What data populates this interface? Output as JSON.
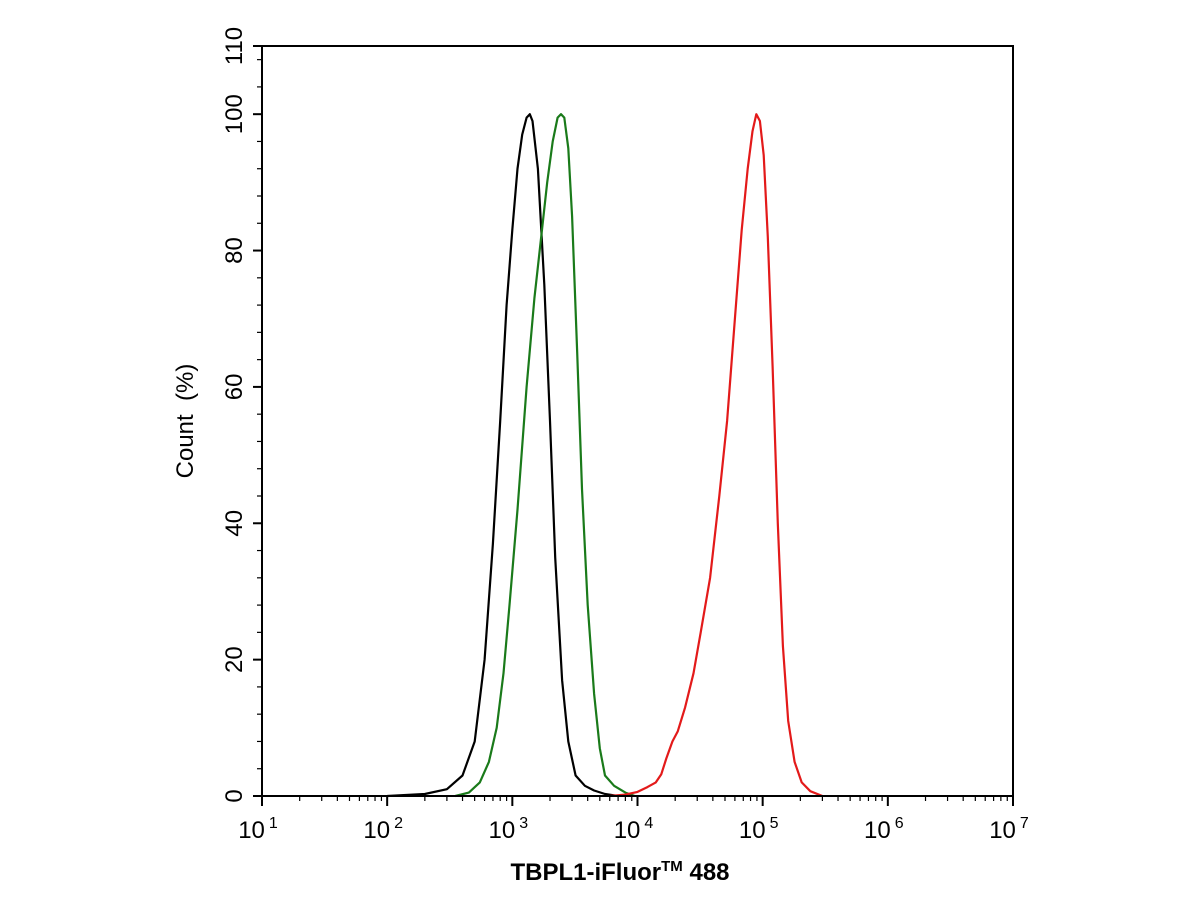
{
  "chart_data": {
    "type": "line",
    "title": "",
    "xlabel": "TBPL1-iFluor™ 488",
    "xlabel_parts": {
      "main": "TBPL1-iFluor",
      "sup": "TM",
      "tail": " 488"
    },
    "ylabel": "Count  (%)",
    "x_scale": "log",
    "xlim": [
      10,
      10000000
    ],
    "ylim": [
      0,
      110
    ],
    "x_ticks": [
      {
        "base": "10",
        "exp": "1",
        "value": 10
      },
      {
        "base": "10",
        "exp": "2",
        "value": 100
      },
      {
        "base": "10",
        "exp": "3",
        "value": 1000
      },
      {
        "base": "10",
        "exp": "4",
        "value": 10000
      },
      {
        "base": "10",
        "exp": "5",
        "value": 100000
      },
      {
        "base": "10",
        "exp": "6",
        "value": 1000000
      },
      {
        "base": "10",
        "exp": "7",
        "value": 10000000
      }
    ],
    "y_ticks": [
      "0",
      "20",
      "40",
      "60",
      "80",
      "100",
      "110"
    ],
    "y_tick_values": [
      0,
      20,
      40,
      60,
      80,
      100,
      110
    ],
    "grid": false,
    "legend": "none",
    "series": [
      {
        "color": "#000000",
        "points": [
          [
            100,
            0
          ],
          [
            200,
            0.3
          ],
          [
            300,
            1
          ],
          [
            400,
            3
          ],
          [
            500,
            8
          ],
          [
            600,
            20
          ],
          [
            700,
            37
          ],
          [
            800,
            55
          ],
          [
            900,
            72
          ],
          [
            1000,
            83
          ],
          [
            1100,
            92
          ],
          [
            1200,
            97
          ],
          [
            1300,
            99.5
          ],
          [
            1380,
            100
          ],
          [
            1450,
            99
          ],
          [
            1600,
            92
          ],
          [
            1800,
            75
          ],
          [
            2000,
            55
          ],
          [
            2200,
            35
          ],
          [
            2500,
            17
          ],
          [
            2800,
            8
          ],
          [
            3200,
            3
          ],
          [
            3800,
            1.5
          ],
          [
            4500,
            0.8
          ],
          [
            5500,
            0.3
          ],
          [
            7000,
            0
          ]
        ]
      },
      {
        "color": "#1a7a1a",
        "points": [
          [
            350,
            0
          ],
          [
            450,
            0.5
          ],
          [
            550,
            2
          ],
          [
            650,
            5
          ],
          [
            750,
            10
          ],
          [
            850,
            18
          ],
          [
            950,
            28
          ],
          [
            1100,
            42
          ],
          [
            1300,
            60
          ],
          [
            1500,
            73
          ],
          [
            1700,
            82
          ],
          [
            1900,
            90
          ],
          [
            2100,
            96
          ],
          [
            2300,
            99.5
          ],
          [
            2450,
            100
          ],
          [
            2600,
            99.5
          ],
          [
            2800,
            95
          ],
          [
            3000,
            85
          ],
          [
            3300,
            65
          ],
          [
            3600,
            45
          ],
          [
            4000,
            28
          ],
          [
            4500,
            15
          ],
          [
            5000,
            7
          ],
          [
            5500,
            3
          ],
          [
            6500,
            1.5
          ],
          [
            8000,
            0.5
          ],
          [
            9500,
            0
          ]
        ]
      },
      {
        "color": "#e31a1a",
        "points": [
          [
            6000,
            0
          ],
          [
            8000,
            0.2
          ],
          [
            10000,
            0.6
          ],
          [
            12000,
            1.3
          ],
          [
            14000,
            2
          ],
          [
            15500,
            3.2
          ],
          [
            17000,
            5.5
          ],
          [
            19000,
            8
          ],
          [
            21000,
            9.5
          ],
          [
            24000,
            13
          ],
          [
            28000,
            18
          ],
          [
            32000,
            24
          ],
          [
            38000,
            32
          ],
          [
            45000,
            44
          ],
          [
            52000,
            55
          ],
          [
            60000,
            70
          ],
          [
            68000,
            83
          ],
          [
            76000,
            92
          ],
          [
            83000,
            97.5
          ],
          [
            89000,
            100
          ],
          [
            95000,
            99
          ],
          [
            102000,
            94
          ],
          [
            110000,
            82
          ],
          [
            120000,
            63
          ],
          [
            132000,
            40
          ],
          [
            145000,
            22
          ],
          [
            160000,
            11
          ],
          [
            180000,
            5
          ],
          [
            205000,
            2
          ],
          [
            240000,
            0.7
          ],
          [
            300000,
            0
          ]
        ]
      }
    ]
  }
}
